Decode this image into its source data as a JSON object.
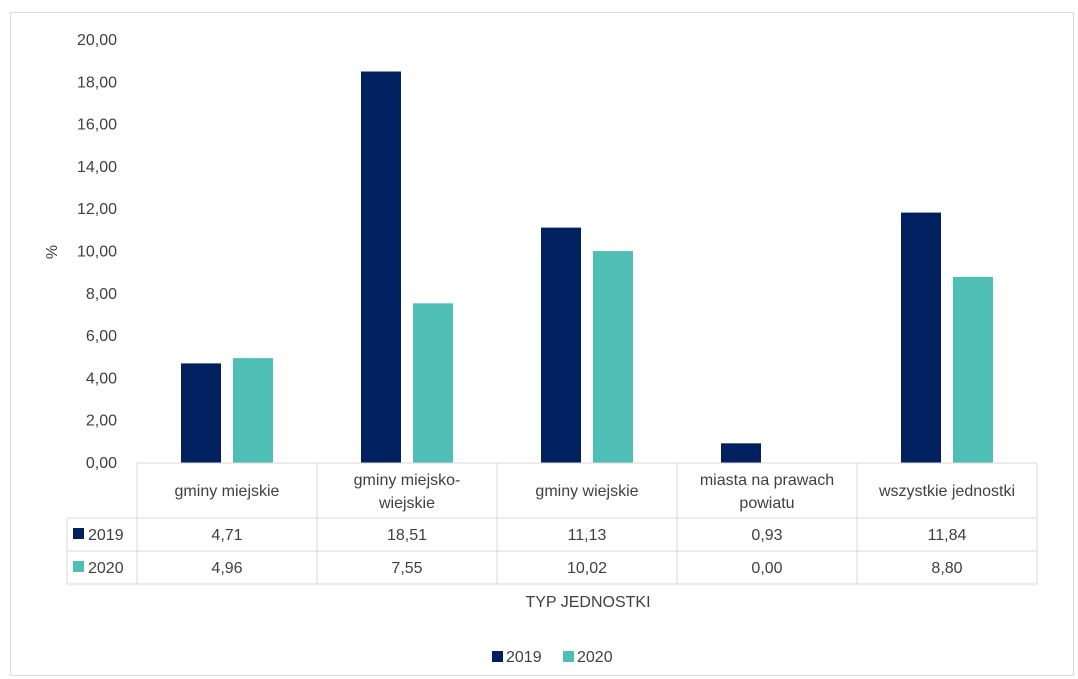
{
  "chart_data": {
    "type": "bar",
    "categories": [
      [
        "gminy miejskie"
      ],
      [
        "gminy miejsko-",
        "wiejskie"
      ],
      [
        "gminy wiejskie"
      ],
      [
        "miasta na prawach",
        "powiatu"
      ],
      [
        "wszystkie jednostki"
      ]
    ],
    "series": [
      {
        "name": "2019",
        "color": "#002060",
        "values": [
          4.71,
          18.51,
          11.13,
          0.93,
          11.84
        ],
        "labels": [
          "4,71",
          "18,51",
          "11,13",
          "0,93",
          "11,84"
        ]
      },
      {
        "name": "2020",
        "color": "#4fbfb6",
        "values": [
          4.96,
          7.55,
          10.02,
          0.0,
          8.8
        ],
        "labels": [
          "4,96",
          "7,55",
          "10,02",
          "0,00",
          "8,80"
        ]
      }
    ],
    "xlabel": "TYP JEDNOSTKI",
    "ylabel": "%",
    "ylim": [
      0,
      20
    ],
    "yticks": [
      0,
      2,
      4,
      6,
      8,
      10,
      12,
      14,
      16,
      18,
      20
    ],
    "ytick_labels": [
      "0,00",
      "2,00",
      "4,00",
      "6,00",
      "8,00",
      "10,00",
      "12,00",
      "14,00",
      "16,00",
      "18,00",
      "20,00"
    ],
    "grid": false,
    "legend": "bottom",
    "data_table": true
  }
}
